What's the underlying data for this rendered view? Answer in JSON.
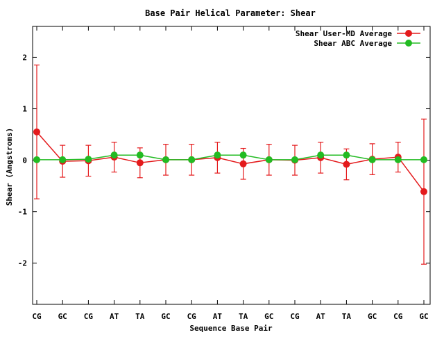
{
  "chart_data": {
    "type": "line",
    "title": "Base Pair Helical Parameter: Shear",
    "xlabel": "Sequence Base Pair",
    "ylabel": "Shear (Angstroms)",
    "categories": [
      "CG",
      "GC",
      "CG",
      "AT",
      "TA",
      "GC",
      "CG",
      "AT",
      "TA",
      "GC",
      "CG",
      "AT",
      "TA",
      "GC",
      "CG",
      "GC"
    ],
    "ylim": [
      -2.8,
      2.6
    ],
    "yticks": [
      -2,
      -1,
      0,
      1,
      2
    ],
    "legend_position": "top-right",
    "grid": false,
    "series": [
      {
        "name": "Shear User-MD Average",
        "color": "#e41a1c",
        "values": [
          0.55,
          -0.02,
          -0.01,
          0.06,
          -0.05,
          0.01,
          0.01,
          0.05,
          -0.07,
          0.01,
          0.0,
          0.05,
          -0.08,
          0.02,
          0.06,
          -0.61
        ],
        "error": [
          1.3,
          0.31,
          0.3,
          0.29,
          0.29,
          0.3,
          0.3,
          0.3,
          0.3,
          0.3,
          0.29,
          0.3,
          0.3,
          0.3,
          0.29,
          1.41
        ]
      },
      {
        "name": "Shear ABC Average",
        "color": "#22bb22",
        "values": [
          0.01,
          0.01,
          0.02,
          0.1,
          0.1,
          0.01,
          0.01,
          0.1,
          0.1,
          0.01,
          0.01,
          0.1,
          0.1,
          0.01,
          0.01,
          0.01
        ]
      }
    ]
  }
}
